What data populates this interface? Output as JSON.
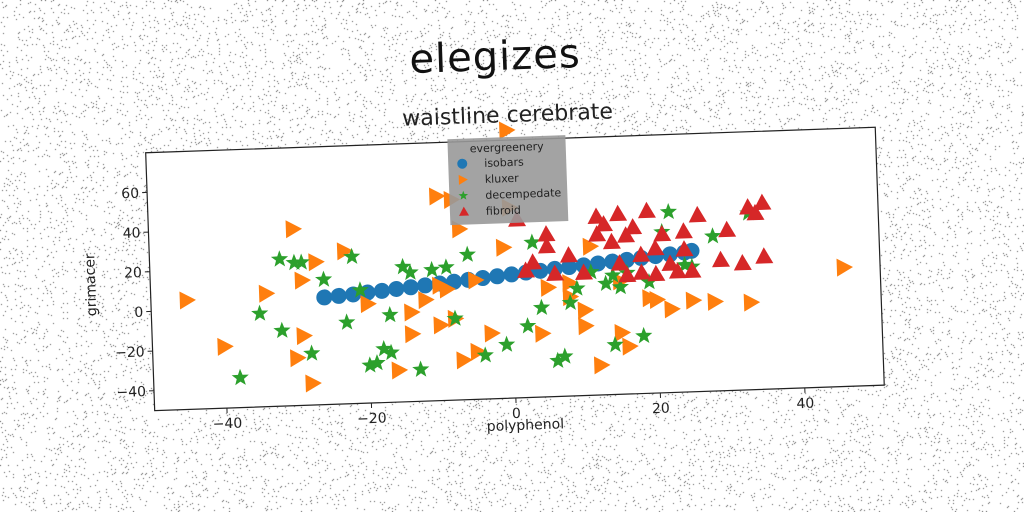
{
  "figure": {
    "suptitle": "elegizes"
  },
  "chart_data": {
    "type": "scatter",
    "title": "waistline cerebrate",
    "xlabel": "polyphenol",
    "ylabel": "grimacer",
    "xlim": [
      -50,
      51
    ],
    "ylim": [
      -50,
      80
    ],
    "xticks": [
      -40,
      -20,
      0,
      20,
      40
    ],
    "yticks": [
      -40,
      -20,
      0,
      20,
      40,
      60
    ],
    "grid": false,
    "legend": {
      "title": "evergreenery",
      "position": "top-center"
    },
    "series": [
      {
        "name": "isobars",
        "marker": "circle",
        "color": "#1f77b4",
        "x": [
          -26,
          -24,
          -22,
          -20,
          -18,
          -16,
          -14,
          -12,
          -10,
          -8,
          -6,
          -4,
          -2,
          0,
          2,
          4,
          6,
          8,
          10,
          12,
          14,
          16,
          18,
          20,
          22,
          24,
          25
        ],
        "y": [
          4,
          4.5,
          5,
          5.7,
          6.3,
          7,
          7.6,
          8.3,
          9,
          9.6,
          10.3,
          11,
          11.6,
          12.3,
          13,
          13.6,
          14.3,
          15,
          15.6,
          16.3,
          17,
          17.6,
          18.3,
          19,
          19.6,
          20.3,
          21
        ]
      },
      {
        "name": "kluxer",
        "marker": "triangle-right",
        "color": "#ff7f0e",
        "x": [
          -45,
          -40,
          -34,
          -30,
          -30,
          -29,
          -29,
          -28,
          -27,
          -23,
          -20,
          -16,
          -14,
          -14,
          -12,
          -10,
          -10,
          -10,
          -9,
          -8,
          -8,
          -7,
          -7,
          -5,
          -5,
          -3,
          -1,
          0,
          0,
          4,
          5,
          8,
          8,
          10,
          10,
          11,
          12,
          15,
          15,
          16,
          19,
          20,
          22,
          25,
          28,
          33,
          46
        ],
        "y": [
          5,
          -19,
          7,
          -26,
          39,
          -15,
          13,
          -39,
          22,
          27,
          0,
          -34,
          -16,
          -5,
          1,
          -12,
          53,
          8,
          6,
          -9,
          51,
          -30,
          36,
          10,
          -26,
          -17,
          26,
          85,
          46,
          -18,
          5,
          0,
          7,
          -7,
          -15,
          25,
          -35,
          -19,
          7,
          -26,
          -2,
          -3,
          -8,
          -4,
          -5,
          -6,
          10
        ]
      },
      {
        "name": "decempedate",
        "marker": "star",
        "color": "#2ca02c",
        "x": [
          -38,
          -35,
          -32,
          -32,
          -30,
          -29,
          -28,
          -26,
          -23,
          -22,
          -21,
          -20,
          -19,
          -18,
          -17,
          -17,
          -15,
          -14,
          -13,
          -11,
          -9,
          -8,
          -6,
          -4,
          -1,
          2,
          3,
          4,
          6,
          7,
          8,
          9,
          11,
          13,
          14,
          14,
          15,
          16,
          18,
          19,
          21,
          22,
          24,
          25,
          28,
          33
        ],
        "y": [
          -35,
          -3,
          -12,
          24,
          22,
          22,
          -24,
          13,
          -9,
          24,
          7,
          -31,
          -30,
          -23,
          -6,
          -25,
          18,
          15,
          -34,
          16,
          17,
          -9,
          23,
          -28,
          -23,
          -14,
          28,
          -5,
          -32,
          -30,
          -3,
          4,
          12,
          6,
          -25,
          10,
          4,
          11,
          -21,
          6,
          31,
          41,
          14,
          13,
          28,
          39
        ]
      },
      {
        "name": "fibroid",
        "marker": "triangle-up",
        "color": "#d62728",
        "x": [
          1,
          2,
          3,
          5,
          5,
          6,
          8,
          10,
          12,
          12,
          13,
          14,
          15,
          15,
          16,
          16,
          17,
          18,
          18,
          19,
          20,
          20,
          21,
          22,
          23,
          24,
          24,
          25,
          26,
          29,
          30,
          32,
          33,
          34,
          35,
          35
        ],
        "y": [
          40,
          14,
          18,
          26,
          32,
          12,
          21,
          12,
          31,
          40,
          36,
          27,
          41,
          16,
          30,
          10,
          34,
          11,
          20,
          42,
          23,
          10,
          30,
          15,
          11,
          31,
          22,
          11,
          39,
          16,
          31,
          14,
          42,
          39,
          17,
          44
        ]
      }
    ]
  }
}
